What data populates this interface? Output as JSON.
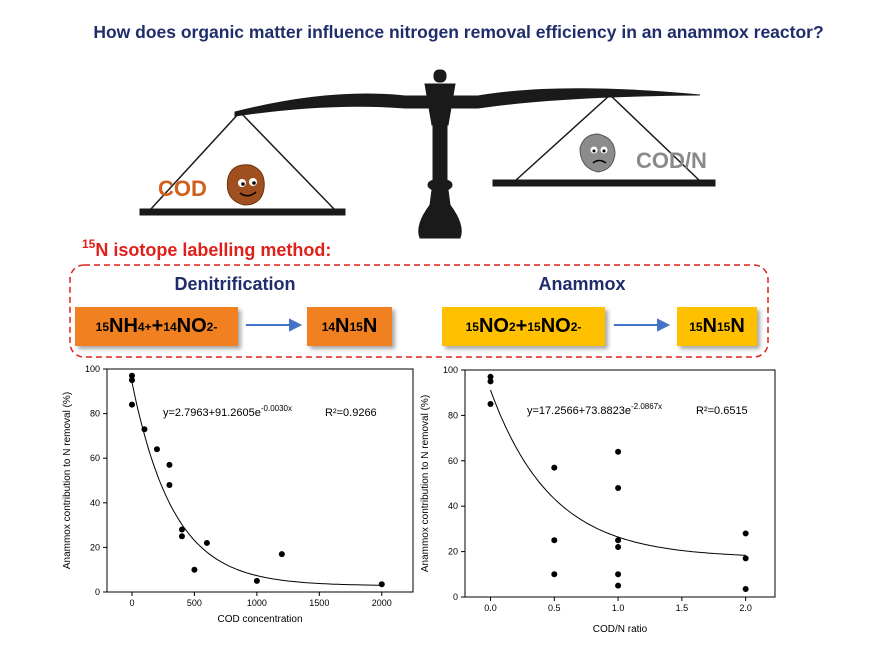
{
  "title": "How does organic matter influence nitrogen removal efficiency in an anammox reactor?",
  "scale": {
    "left_label": "COD",
    "right_label": "COD/N"
  },
  "method": {
    "label": [
      "15",
      "N isotope labelling method:"
    ],
    "denitrification": {
      "title": "Denitrification",
      "reactant": [
        "15",
        "NH",
        "4",
        "+",
        "+",
        "14",
        "NO",
        "2",
        "-"
      ],
      "product": [
        "14",
        "N",
        "15",
        "N"
      ]
    },
    "anammox": {
      "title": "Anammox",
      "reactant": [
        "15",
        "NO",
        "2",
        "+",
        "15",
        "NO",
        "2",
        "-"
      ],
      "product": [
        "15",
        "N",
        "15",
        "N"
      ]
    }
  },
  "chart_data": [
    {
      "type": "scatter",
      "xlabel": "COD concentration",
      "ylabel": "Anammox contribution to N removal (%)",
      "x": [
        0,
        0,
        0,
        100,
        200,
        300,
        300,
        400,
        400,
        500,
        600,
        1000,
        1200,
        2000
      ],
      "values": [
        97,
        95,
        84,
        73,
        64,
        57,
        48,
        28,
        25,
        10,
        22,
        5,
        17,
        3.5
      ],
      "color": "#000000",
      "xlim": [
        -200,
        2250
      ],
      "ylim": [
        0,
        100
      ],
      "xticks": [
        0,
        500,
        1000,
        1500,
        2000
      ],
      "yticks": [
        0,
        20,
        40,
        60,
        80,
        100
      ],
      "fit": [
        2.7963,
        91.2605,
        -0.003
      ],
      "equation": "y=2.7963+91.2605e",
      "equation_exponent": "-0.0030x",
      "r2": "R²=0.9266"
    },
    {
      "type": "scatter",
      "xlabel": "COD/N ratio",
      "ylabel": "Anammox contribution to N removal (%)",
      "x": [
        0,
        0,
        0,
        0.5,
        0.5,
        0.5,
        1,
        1,
        1,
        1,
        1,
        1,
        2,
        2,
        2
      ],
      "values": [
        97,
        95,
        85,
        57,
        25,
        10,
        64,
        48,
        25,
        22,
        10,
        5,
        28,
        17,
        3.5
      ],
      "color": "#000000",
      "xlim": [
        -0.2,
        2.23
      ],
      "ylim": [
        0,
        100
      ],
      "xticks": [
        {
          "value": 0,
          "label": "0.0"
        },
        {
          "value": 0.5,
          "label": "0.5"
        },
        {
          "value": 1,
          "label": "1.0"
        },
        {
          "value": 1.5,
          "label": "1.5"
        },
        {
          "value": 2,
          "label": "2.0"
        }
      ],
      "yticks": [
        0,
        20,
        40,
        60,
        80,
        100
      ],
      "fit": [
        17.2566,
        73.8823,
        -2.0867
      ],
      "equation": "y=17.2566+73.8823e",
      "equation_exponent": "-2.0867x",
      "r2": "R²=0.6515"
    }
  ]
}
